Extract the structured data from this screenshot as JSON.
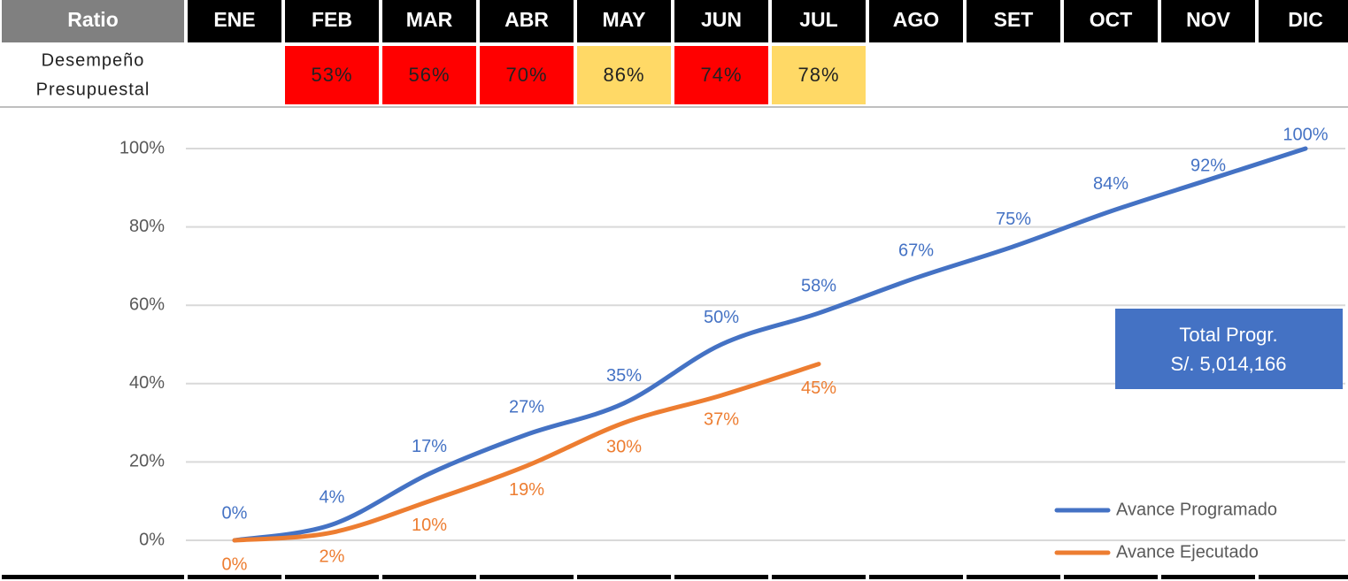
{
  "table": {
    "header": "Ratio",
    "row_label": [
      "Desempeño",
      "Presupuestal"
    ],
    "cells": [
      null,
      "53%",
      "56%",
      "70%",
      "86%",
      "74%",
      "78%",
      null,
      null,
      null,
      null,
      null
    ],
    "cell_colors": [
      null,
      "#ff0000",
      "#ff0000",
      "#ff0000",
      "#ffd966",
      "#ff0000",
      "#ffd966",
      null,
      null,
      null,
      null,
      null
    ]
  },
  "chart_data": {
    "type": "line",
    "categories": [
      "ENE",
      "FEB",
      "MAR",
      "ABR",
      "MAY",
      "JUN",
      "JUL",
      "AGO",
      "SET",
      "OCT",
      "NOV",
      "DIC"
    ],
    "series": [
      {
        "name": "Avance Programado",
        "color": "#4472c4",
        "values": [
          0,
          4,
          17,
          27,
          35,
          50,
          58,
          67,
          75,
          84,
          92,
          100
        ],
        "value_labels": [
          "0%",
          "4%",
          "17%",
          "27%",
          "35%",
          "50%",
          "58%",
          "67%",
          "75%",
          "84%",
          "92%",
          "100%"
        ]
      },
      {
        "name": "Avance Ejecutado",
        "color": "#ed7d31",
        "values": [
          0,
          2,
          10,
          19,
          30,
          37,
          45,
          null,
          null,
          null,
          null,
          null
        ],
        "value_labels": [
          "0%",
          "2%",
          "10%",
          "19%",
          "30%",
          "37%",
          "45%",
          null,
          null,
          null,
          null,
          null
        ]
      }
    ],
    "ylim": [
      0,
      100
    ],
    "yticks": [
      {
        "value": 0,
        "label": "0%"
      },
      {
        "value": 20,
        "label": "20%"
      },
      {
        "value": 40,
        "label": "40%"
      },
      {
        "value": 60,
        "label": "60%"
      },
      {
        "value": 80,
        "label": "80%"
      },
      {
        "value": 100,
        "label": "100%"
      }
    ],
    "grid": true,
    "legend": "lower right",
    "annotation": {
      "lines": [
        "Total Progr.",
        "S/. 5,014,166"
      ],
      "color": "#4472c4"
    }
  }
}
